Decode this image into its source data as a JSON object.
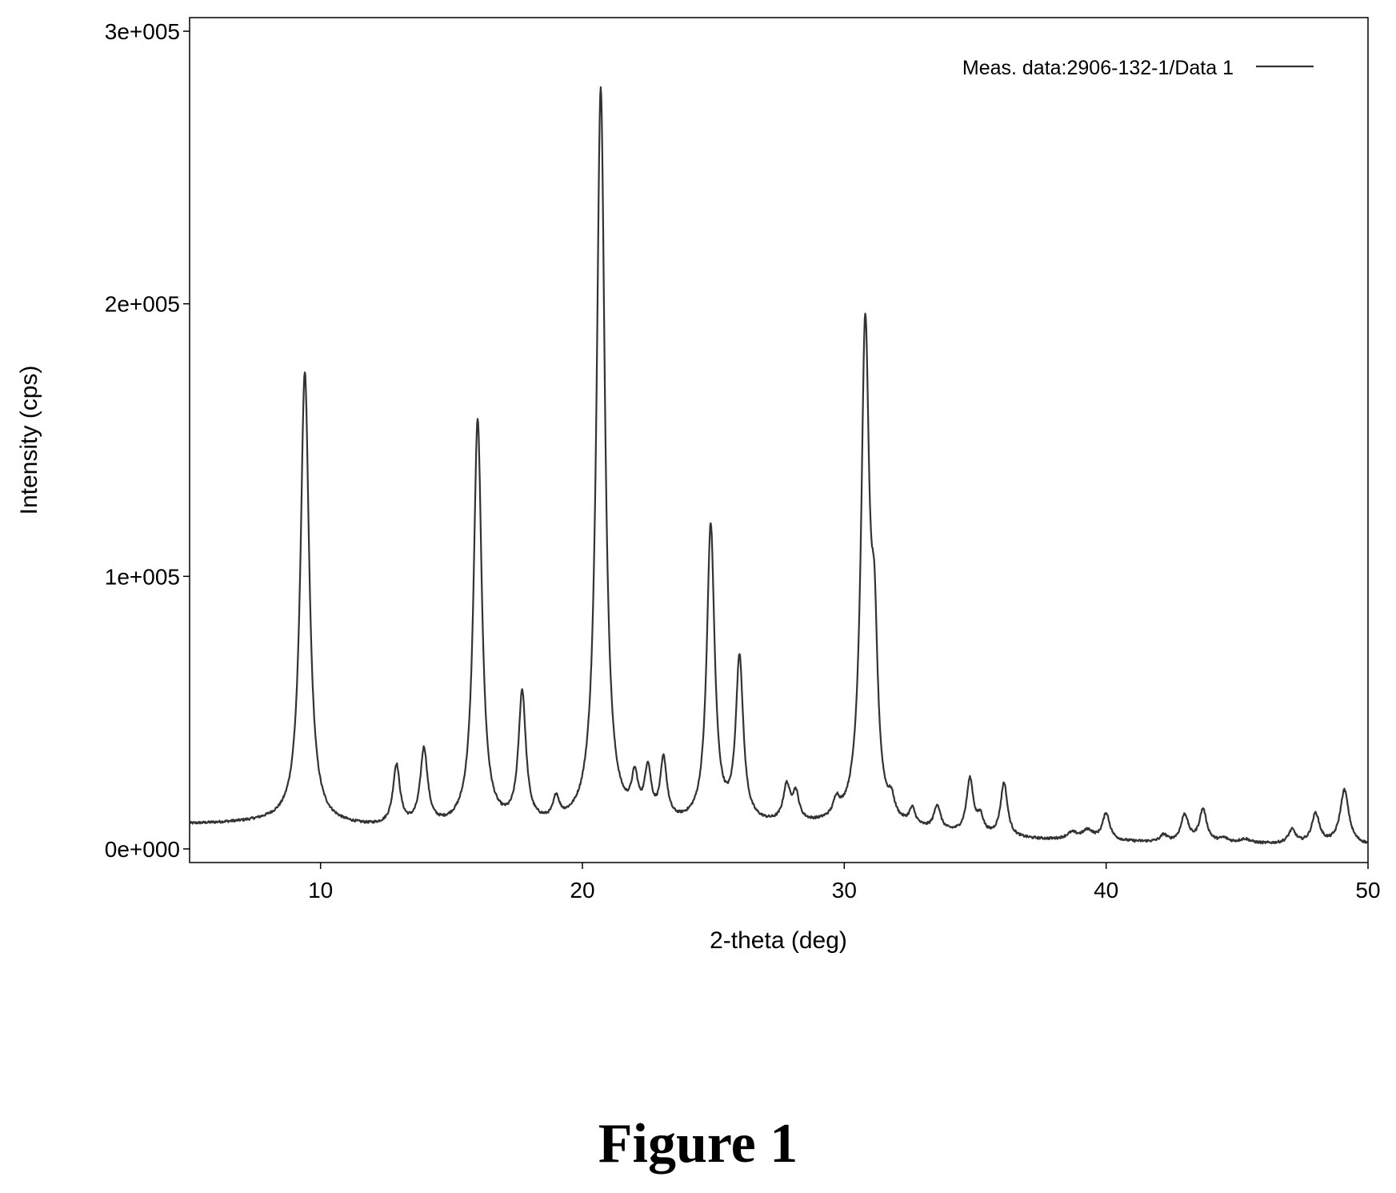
{
  "caption": "Figure 1",
  "chart_data": {
    "type": "line",
    "title": "",
    "xlabel": "2-theta (deg)",
    "ylabel": "Intensity (cps)",
    "xlim": [
      5,
      50
    ],
    "ylim": [
      -5000,
      305000
    ],
    "x_ticks": [
      10,
      20,
      30,
      40,
      50
    ],
    "x_tick_labels": [
      "10",
      "20",
      "30",
      "40",
      "50"
    ],
    "y_ticks": [
      0,
      100000,
      200000,
      300000
    ],
    "y_tick_labels": [
      "0e+000",
      "1e+005",
      "2e+005",
      "3e+005"
    ],
    "grid": false,
    "legend": {
      "placement": "top-right"
    },
    "series": [
      {
        "name": "Meas. data:2906-132-1/Data 1",
        "color": "#333333",
        "baseline": [
          [
            5,
            9000
          ],
          [
            8,
            9500
          ],
          [
            10,
            8500
          ],
          [
            12,
            7500
          ],
          [
            14,
            7000
          ],
          [
            20,
            7500
          ],
          [
            25,
            8000
          ],
          [
            30,
            8000
          ],
          [
            33,
            6000
          ],
          [
            36,
            3500
          ],
          [
            40,
            2500
          ],
          [
            45,
            1800
          ],
          [
            50,
            1200
          ]
        ],
        "peaks": [
          {
            "x": 9.4,
            "intensity": 166000,
            "width": 0.2
          },
          {
            "x": 12.9,
            "intensity": 22000,
            "width": 0.16
          },
          {
            "x": 13.95,
            "intensity": 28000,
            "width": 0.17
          },
          {
            "x": 16.0,
            "intensity": 149000,
            "width": 0.19
          },
          {
            "x": 17.7,
            "intensity": 48000,
            "width": 0.17
          },
          {
            "x": 19.0,
            "intensity": 8000,
            "width": 0.14
          },
          {
            "x": 20.7,
            "intensity": 271000,
            "width": 0.19
          },
          {
            "x": 22.0,
            "intensity": 14000,
            "width": 0.15
          },
          {
            "x": 22.5,
            "intensity": 18000,
            "width": 0.15
          },
          {
            "x": 23.1,
            "intensity": 22000,
            "width": 0.15
          },
          {
            "x": 24.9,
            "intensity": 109000,
            "width": 0.18
          },
          {
            "x": 26.0,
            "intensity": 60000,
            "width": 0.17
          },
          {
            "x": 27.8,
            "intensity": 13000,
            "width": 0.16
          },
          {
            "x": 28.15,
            "intensity": 10000,
            "width": 0.15
          },
          {
            "x": 29.7,
            "intensity": 6000,
            "width": 0.14
          },
          {
            "x": 30.8,
            "intensity": 180000,
            "width": 0.19
          },
          {
            "x": 31.15,
            "intensity": 55000,
            "width": 0.15
          },
          {
            "x": 31.8,
            "intensity": 6000,
            "width": 0.14
          },
          {
            "x": 32.6,
            "intensity": 6000,
            "width": 0.14
          },
          {
            "x": 33.55,
            "intensity": 9000,
            "width": 0.15
          },
          {
            "x": 34.8,
            "intensity": 20000,
            "width": 0.16
          },
          {
            "x": 35.2,
            "intensity": 6000,
            "width": 0.14
          },
          {
            "x": 36.1,
            "intensity": 20000,
            "width": 0.16
          },
          {
            "x": 38.7,
            "intensity": 2500,
            "width": 0.25
          },
          {
            "x": 39.3,
            "intensity": 3500,
            "width": 0.25
          },
          {
            "x": 40.0,
            "intensity": 10000,
            "width": 0.17
          },
          {
            "x": 42.2,
            "intensity": 2500,
            "width": 0.15
          },
          {
            "x": 43.0,
            "intensity": 10000,
            "width": 0.17
          },
          {
            "x": 43.7,
            "intensity": 12000,
            "width": 0.17
          },
          {
            "x": 44.5,
            "intensity": 1500,
            "width": 0.2
          },
          {
            "x": 45.3,
            "intensity": 1500,
            "width": 0.25
          },
          {
            "x": 47.1,
            "intensity": 5000,
            "width": 0.17
          },
          {
            "x": 48.0,
            "intensity": 11000,
            "width": 0.18
          },
          {
            "x": 49.1,
            "intensity": 20000,
            "width": 0.2
          }
        ]
      }
    ]
  }
}
